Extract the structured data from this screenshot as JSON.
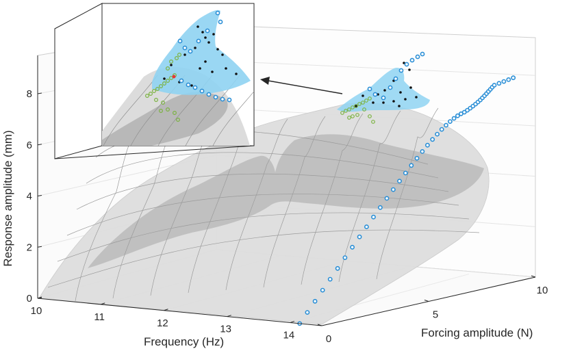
{
  "chart_data": {
    "type": "surface3d",
    "xlabel": "Frequency (Hz)",
    "ylabel": "Forcing amplitude (N)",
    "zlabel": "Response amplitude (mm)",
    "xlim": [
      10,
      14.5
    ],
    "ylim": [
      0,
      10
    ],
    "zlim": [
      0,
      9.5
    ],
    "x_ticks": [
      10,
      11,
      12,
      13,
      14
    ],
    "y_ticks": [
      0,
      5,
      10
    ],
    "z_ticks": [
      0,
      2,
      4,
      6,
      8
    ],
    "grid": true,
    "has_inset": true,
    "colors": {
      "surface": "#dcdcdc",
      "surface_shaded": "#b9b9b9",
      "blue_region": "#7fcdee",
      "blue_markers": "#2b8fd6",
      "green_markers": "#7cb342",
      "black_points": "#000000",
      "red_marker": "#e53935"
    },
    "backbone_curve": {
      "description_free": true,
      "x": [
        14.2,
        14.35,
        14.5,
        14.6,
        14.7,
        14.8,
        14.9,
        14.95,
        15.0,
        15.0,
        14.9,
        14.75,
        14.55,
        14.3,
        14.0,
        13.75,
        13.55,
        13.4,
        13.3,
        13.25,
        13.35
      ],
      "y": [
        0.0,
        1.0,
        2.0,
        3.0,
        4.0,
        5.0,
        6.0,
        7.0,
        8.0,
        8.6,
        9.0,
        9.3,
        9.5,
        9.6,
        9.7,
        9.7,
        9.6,
        9.5,
        9.4,
        9.3,
        9.2
      ]
    }
  }
}
